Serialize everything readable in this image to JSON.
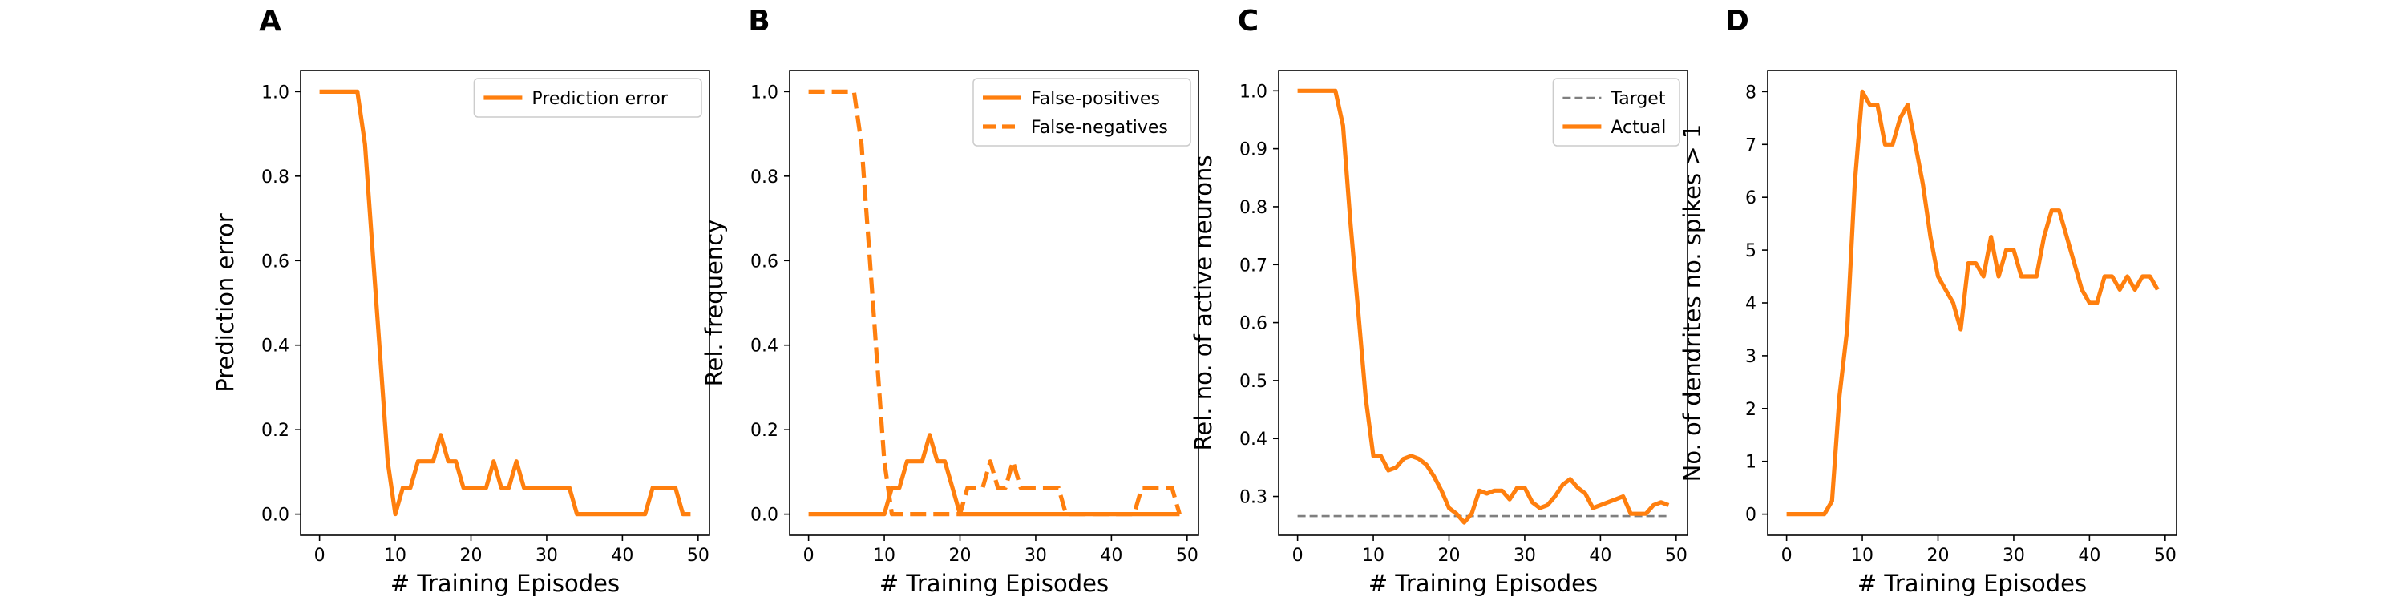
{
  "figure": {
    "colors": {
      "primary": "#ff7f0e",
      "target": "#7f7f7f",
      "axis": "#000000",
      "legend_border": "#cccccc"
    }
  },
  "chart_data": [
    {
      "panel": "A",
      "type": "line",
      "xlabel": "# Training Episodes",
      "ylabel": "Prediction error",
      "xlim": [
        -2.5,
        51.5
      ],
      "ylim": [
        -0.05,
        1.05
      ],
      "xticks": [
        0,
        10,
        20,
        30,
        40,
        50
      ],
      "xtick_labels": [
        "0",
        "10",
        "20",
        "30",
        "40",
        "50"
      ],
      "yticks": [
        0.0,
        0.2,
        0.4,
        0.6,
        0.8,
        1.0
      ],
      "ytick_labels": [
        "0.0",
        "0.2",
        "0.4",
        "0.6",
        "0.8",
        "1.0"
      ],
      "grid": false,
      "legend_position": "upper right",
      "series": [
        {
          "name": "Prediction error",
          "style": "solid",
          "color": "#ff7f0e",
          "x": [
            0,
            1,
            2,
            3,
            4,
            5,
            6,
            7,
            8,
            9,
            10,
            11,
            12,
            13,
            14,
            15,
            16,
            17,
            18,
            19,
            20,
            21,
            22,
            23,
            24,
            25,
            26,
            27,
            28,
            29,
            30,
            31,
            32,
            33,
            34,
            35,
            36,
            37,
            38,
            39,
            40,
            41,
            42,
            43,
            44,
            45,
            46,
            47,
            48,
            49
          ],
          "y": [
            1.0,
            1.0,
            1.0,
            1.0,
            1.0,
            1.0,
            0.875,
            0.625,
            0.375,
            0.125,
            0.0,
            0.0625,
            0.0625,
            0.125,
            0.125,
            0.125,
            0.1875,
            0.125,
            0.125,
            0.0625,
            0.0625,
            0.0625,
            0.0625,
            0.125,
            0.0625,
            0.0625,
            0.125,
            0.0625,
            0.0625,
            0.0625,
            0.0625,
            0.0625,
            0.0625,
            0.0625,
            0.0,
            0.0,
            0.0,
            0.0,
            0.0,
            0.0,
            0.0,
            0.0,
            0.0,
            0.0,
            0.0625,
            0.0625,
            0.0625,
            0.0625,
            0.0,
            0.0
          ]
        }
      ]
    },
    {
      "panel": "B",
      "type": "line",
      "xlabel": "# Training Episodes",
      "ylabel": "Rel. frequency",
      "xlim": [
        -2.5,
        51.5
      ],
      "ylim": [
        -0.05,
        1.05
      ],
      "xticks": [
        0,
        10,
        20,
        30,
        40,
        50
      ],
      "xtick_labels": [
        "0",
        "10",
        "20",
        "30",
        "40",
        "50"
      ],
      "yticks": [
        0.0,
        0.2,
        0.4,
        0.6,
        0.8,
        1.0
      ],
      "ytick_labels": [
        "0.0",
        "0.2",
        "0.4",
        "0.6",
        "0.8",
        "1.0"
      ],
      "grid": false,
      "legend_position": "upper right",
      "series": [
        {
          "name": "False-positives",
          "style": "solid",
          "color": "#ff7f0e",
          "x": [
            0,
            1,
            2,
            3,
            4,
            5,
            6,
            7,
            8,
            9,
            10,
            11,
            12,
            13,
            14,
            15,
            16,
            17,
            18,
            19,
            20,
            21,
            22,
            23,
            24,
            25,
            26,
            27,
            28,
            29,
            30,
            31,
            32,
            33,
            34,
            35,
            36,
            37,
            38,
            39,
            40,
            41,
            42,
            43,
            44,
            45,
            46,
            47,
            48,
            49
          ],
          "y": [
            0,
            0,
            0,
            0,
            0,
            0,
            0,
            0,
            0,
            0,
            0,
            0.0625,
            0.0625,
            0.125,
            0.125,
            0.125,
            0.1875,
            0.125,
            0.125,
            0.0625,
            0,
            0,
            0,
            0,
            0,
            0,
            0,
            0,
            0,
            0,
            0,
            0,
            0,
            0,
            0,
            0,
            0,
            0,
            0,
            0,
            0,
            0,
            0,
            0,
            0,
            0,
            0,
            0,
            0,
            0
          ]
        },
        {
          "name": "False-negatives",
          "style": "dashed",
          "color": "#ff7f0e",
          "x": [
            0,
            1,
            2,
            3,
            4,
            5,
            6,
            7,
            8,
            9,
            10,
            11,
            12,
            13,
            14,
            15,
            16,
            17,
            18,
            19,
            20,
            21,
            22,
            23,
            24,
            25,
            26,
            27,
            28,
            29,
            30,
            31,
            32,
            33,
            34,
            35,
            36,
            37,
            38,
            39,
            40,
            41,
            42,
            43,
            44,
            45,
            46,
            47,
            48,
            49
          ],
          "y": [
            1.0,
            1.0,
            1.0,
            1.0,
            1.0,
            1.0,
            1.0,
            0.875,
            0.625,
            0.375,
            0.125,
            0,
            0,
            0,
            0,
            0,
            0,
            0,
            0,
            0,
            0,
            0.0625,
            0.0625,
            0.0625,
            0.125,
            0.0625,
            0.0625,
            0.125,
            0.0625,
            0.0625,
            0.0625,
            0.0625,
            0.0625,
            0.0625,
            0,
            0,
            0,
            0,
            0,
            0,
            0,
            0,
            0,
            0,
            0.0625,
            0.0625,
            0.0625,
            0.0625,
            0.0625,
            0
          ]
        }
      ]
    },
    {
      "panel": "C",
      "type": "line",
      "xlabel": "# Training Episodes",
      "ylabel": "Rel. no. of active neurons",
      "xlim": [
        -2.5,
        51.5
      ],
      "ylim": [
        0.233,
        1.035
      ],
      "xticks": [
        0,
        10,
        20,
        30,
        40,
        50
      ],
      "xtick_labels": [
        "0",
        "10",
        "20",
        "30",
        "40",
        "50"
      ],
      "yticks": [
        0.3,
        0.4,
        0.5,
        0.6,
        0.7,
        0.8,
        0.9,
        1.0
      ],
      "ytick_labels": [
        "0.3",
        "0.4",
        "0.5",
        "0.6",
        "0.7",
        "0.8",
        "0.9",
        "1.0"
      ],
      "grid": false,
      "legend_position": "upper right",
      "series": [
        {
          "name": "Target",
          "style": "dashed",
          "color": "#7f7f7f",
          "x": [
            0,
            49
          ],
          "y": [
            0.266,
            0.266
          ]
        },
        {
          "name": "Actual",
          "style": "solid",
          "color": "#ff7f0e",
          "x": [
            0,
            1,
            2,
            3,
            4,
            5,
            6,
            7,
            8,
            9,
            10,
            11,
            12,
            13,
            14,
            15,
            16,
            17,
            18,
            19,
            20,
            21,
            22,
            23,
            24,
            25,
            26,
            27,
            28,
            29,
            30,
            31,
            32,
            33,
            34,
            35,
            36,
            37,
            38,
            39,
            40,
            41,
            42,
            43,
            44,
            45,
            46,
            47,
            48,
            49
          ],
          "y": [
            1.0,
            1.0,
            1.0,
            1.0,
            1.0,
            1.0,
            0.94,
            0.77,
            0.62,
            0.47,
            0.37,
            0.37,
            0.345,
            0.35,
            0.365,
            0.37,
            0.365,
            0.355,
            0.335,
            0.31,
            0.28,
            0.27,
            0.255,
            0.27,
            0.31,
            0.305,
            0.31,
            0.31,
            0.295,
            0.315,
            0.315,
            0.29,
            0.28,
            0.285,
            0.3,
            0.32,
            0.33,
            0.315,
            0.305,
            0.28,
            0.285,
            0.29,
            0.295,
            0.3,
            0.27,
            0.27,
            0.27,
            0.285,
            0.29,
            0.285
          ]
        }
      ]
    },
    {
      "panel": "D",
      "type": "line",
      "xlabel": "# Training Episodes",
      "ylabel": "No. of dendrites no. spikes > 1",
      "xlim": [
        -2.5,
        51.5
      ],
      "ylim": [
        -0.4,
        8.4
      ],
      "xticks": [
        0,
        10,
        20,
        30,
        40,
        50
      ],
      "xtick_labels": [
        "0",
        "10",
        "20",
        "30",
        "40",
        "50"
      ],
      "yticks": [
        0,
        1,
        2,
        3,
        4,
        5,
        6,
        7,
        8
      ],
      "ytick_labels": [
        "0",
        "1",
        "2",
        "3",
        "4",
        "5",
        "6",
        "7",
        "8"
      ],
      "grid": false,
      "series": [
        {
          "style": "solid",
          "color": "#ff7f0e",
          "x": [
            0,
            1,
            2,
            3,
            4,
            5,
            6,
            7,
            8,
            9,
            10,
            11,
            12,
            13,
            14,
            15,
            16,
            17,
            18,
            19,
            20,
            21,
            22,
            23,
            24,
            25,
            26,
            27,
            28,
            29,
            30,
            31,
            32,
            33,
            34,
            35,
            36,
            37,
            38,
            39,
            40,
            41,
            42,
            43,
            44,
            45,
            46,
            47,
            48,
            49
          ],
          "y": [
            0,
            0,
            0,
            0,
            0,
            0,
            0.25,
            2.25,
            3.5,
            6.25,
            8.0,
            7.75,
            7.75,
            7.0,
            7.0,
            7.5,
            7.75,
            7.0,
            6.25,
            5.25,
            4.5,
            4.25,
            4.0,
            3.5,
            4.75,
            4.75,
            4.5,
            5.25,
            4.5,
            5.0,
            5.0,
            4.5,
            4.5,
            4.5,
            5.25,
            5.75,
            5.75,
            5.25,
            4.75,
            4.25,
            4.0,
            4.0,
            4.5,
            4.5,
            4.25,
            4.5,
            4.25,
            4.5,
            4.5,
            4.25
          ]
        }
      ]
    }
  ]
}
